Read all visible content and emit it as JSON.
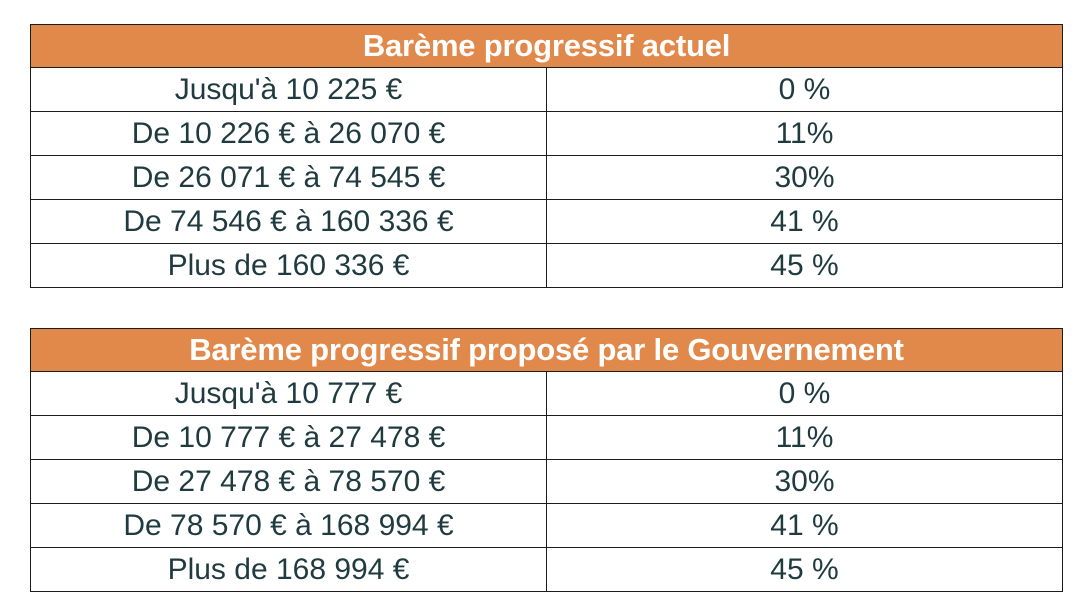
{
  "tables": [
    {
      "title": "Barème progressif actuel",
      "rows": [
        {
          "range": "Jusqu'à 10 225 €",
          "rate": "0 %"
        },
        {
          "range": "De 10 226 € à 26 070 €",
          "rate": "11%"
        },
        {
          "range": "De 26 071 € à 74 545 €",
          "rate": "30%"
        },
        {
          "range": "De 74 546 € à 160 336 €",
          "rate": "41 %"
        },
        {
          "range": "Plus de 160 336 €",
          "rate": "45 %"
        }
      ]
    },
    {
      "title": "Barème progressif proposé par le Gouvernement",
      "rows": [
        {
          "range": "Jusqu'à 10 777 €",
          "rate": "0 %"
        },
        {
          "range": "De 10 777 € à 27 478 €",
          "rate": "11%"
        },
        {
          "range": "De 27 478 € à 78 570 €",
          "rate": "30%"
        },
        {
          "range": "De 78 570 € à 168 994 €",
          "rate": "41 %"
        },
        {
          "range": "Plus de 168 994 €",
          "rate": "45 %"
        }
      ]
    }
  ],
  "colors": {
    "header_bg": "#e1884b",
    "header_text": "#ffffff",
    "cell_text": "#1f3b3f",
    "border": "#1c1c1c"
  }
}
